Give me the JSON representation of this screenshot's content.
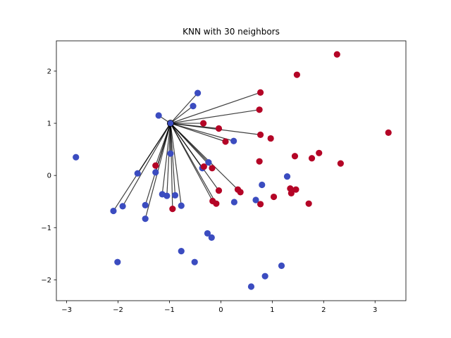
{
  "chart_data": {
    "type": "scatter",
    "title": "KNN with 30 neighbors",
    "xlabel": "",
    "ylabel": "",
    "xlim": [
      -3.2,
      3.6
    ],
    "ylim": [
      -2.4,
      2.58
    ],
    "xticks": [
      -3,
      -2,
      -1,
      0,
      1,
      2,
      3
    ],
    "yticks": [
      -2,
      -1,
      0,
      1,
      2
    ],
    "grid": false,
    "query_point": {
      "x": -0.98,
      "y": 1.0
    },
    "colors": {
      "class_0": "#3b4cc0",
      "class_1": "#b40426",
      "line": "#000000"
    },
    "series": [
      {
        "class": 0,
        "points": [
          {
            "x": -2.82,
            "y": 0.35
          },
          {
            "x": -2.09,
            "y": -0.68
          },
          {
            "x": -2.01,
            "y": -1.66
          },
          {
            "x": -1.91,
            "y": -0.59
          },
          {
            "x": -1.62,
            "y": 0.04
          },
          {
            "x": -1.47,
            "y": -0.57
          },
          {
            "x": -1.47,
            "y": -0.83
          },
          {
            "x": -1.27,
            "y": 0.06
          },
          {
            "x": -1.21,
            "y": 1.15
          },
          {
            "x": -1.14,
            "y": -0.36
          },
          {
            "x": -1.05,
            "y": -0.39
          },
          {
            "x": -0.98,
            "y": 1.0
          },
          {
            "x": -0.98,
            "y": 0.42
          },
          {
            "x": -0.89,
            "y": -0.38
          },
          {
            "x": -0.77,
            "y": -0.58
          },
          {
            "x": -0.77,
            "y": -1.45
          },
          {
            "x": -0.54,
            "y": 1.33
          },
          {
            "x": -0.51,
            "y": -1.66
          },
          {
            "x": -0.45,
            "y": 1.58
          },
          {
            "x": -0.36,
            "y": 0.14
          },
          {
            "x": -0.26,
            "y": -1.11
          },
          {
            "x": -0.24,
            "y": 0.25
          },
          {
            "x": -0.18,
            "y": -1.19
          },
          {
            "x": 0.25,
            "y": 0.66
          },
          {
            "x": 0.26,
            "y": -0.51
          },
          {
            "x": 0.59,
            "y": -2.13
          },
          {
            "x": 0.68,
            "y": -0.47
          },
          {
            "x": 0.8,
            "y": -0.18
          },
          {
            "x": 0.86,
            "y": -1.93
          },
          {
            "x": 1.18,
            "y": -1.73
          },
          {
            "x": 1.29,
            "y": -0.02
          }
        ]
      },
      {
        "class": 1,
        "points": [
          {
            "x": -1.27,
            "y": 0.19
          },
          {
            "x": -0.94,
            "y": -0.64
          },
          {
            "x": -0.34,
            "y": 1.0
          },
          {
            "x": -0.33,
            "y": 0.17
          },
          {
            "x": -0.17,
            "y": 0.14
          },
          {
            "x": -0.16,
            "y": -0.49
          },
          {
            "x": -0.09,
            "y": -0.54
          },
          {
            "x": -0.04,
            "y": 0.9
          },
          {
            "x": -0.04,
            "y": -0.29
          },
          {
            "x": 0.09,
            "y": 0.65
          },
          {
            "x": 0.33,
            "y": -0.27
          },
          {
            "x": 0.38,
            "y": -0.32
          },
          {
            "x": 0.75,
            "y": 1.26
          },
          {
            "x": 0.75,
            "y": 0.27
          },
          {
            "x": 0.77,
            "y": 1.59
          },
          {
            "x": 0.77,
            "y": 0.78
          },
          {
            "x": 0.77,
            "y": -0.55
          },
          {
            "x": 0.97,
            "y": 0.71
          },
          {
            "x": 1.03,
            "y": -0.41
          },
          {
            "x": 1.35,
            "y": -0.25
          },
          {
            "x": 1.37,
            "y": -0.34
          },
          {
            "x": 1.44,
            "y": 0.37
          },
          {
            "x": 1.46,
            "y": -0.27
          },
          {
            "x": 1.48,
            "y": 1.93
          },
          {
            "x": 1.71,
            "y": -0.54
          },
          {
            "x": 1.77,
            "y": 0.33
          },
          {
            "x": 1.91,
            "y": 0.43
          },
          {
            "x": 2.26,
            "y": 2.32
          },
          {
            "x": 2.33,
            "y": 0.23
          },
          {
            "x": 3.26,
            "y": 0.82
          }
        ]
      }
    ],
    "neighbors": [
      {
        "x": -2.09,
        "y": -0.68
      },
      {
        "x": -1.91,
        "y": -0.59
      },
      {
        "x": -1.62,
        "y": 0.04
      },
      {
        "x": -1.47,
        "y": -0.57
      },
      {
        "x": -1.47,
        "y": -0.83
      },
      {
        "x": -1.27,
        "y": 0.06
      },
      {
        "x": -1.27,
        "y": 0.19
      },
      {
        "x": -1.21,
        "y": 1.15
      },
      {
        "x": -1.14,
        "y": -0.36
      },
      {
        "x": -1.05,
        "y": -0.39
      },
      {
        "x": -0.98,
        "y": 0.42
      },
      {
        "x": -0.94,
        "y": -0.64
      },
      {
        "x": -0.89,
        "y": -0.38
      },
      {
        "x": -0.77,
        "y": -0.58
      },
      {
        "x": -0.54,
        "y": 1.33
      },
      {
        "x": -0.45,
        "y": 1.58
      },
      {
        "x": -0.36,
        "y": 0.14
      },
      {
        "x": -0.34,
        "y": 1.0
      },
      {
        "x": -0.24,
        "y": 0.25
      },
      {
        "x": -0.17,
        "y": 0.14
      },
      {
        "x": -0.16,
        "y": -0.49
      },
      {
        "x": -0.09,
        "y": -0.54
      },
      {
        "x": -0.04,
        "y": 0.9
      },
      {
        "x": -0.04,
        "y": -0.29
      },
      {
        "x": 0.09,
        "y": 0.65
      },
      {
        "x": 0.25,
        "y": 0.66
      },
      {
        "x": 0.33,
        "y": -0.27
      },
      {
        "x": 0.75,
        "y": 1.26
      },
      {
        "x": 0.77,
        "y": 1.59
      },
      {
        "x": 0.77,
        "y": 0.78
      }
    ]
  }
}
